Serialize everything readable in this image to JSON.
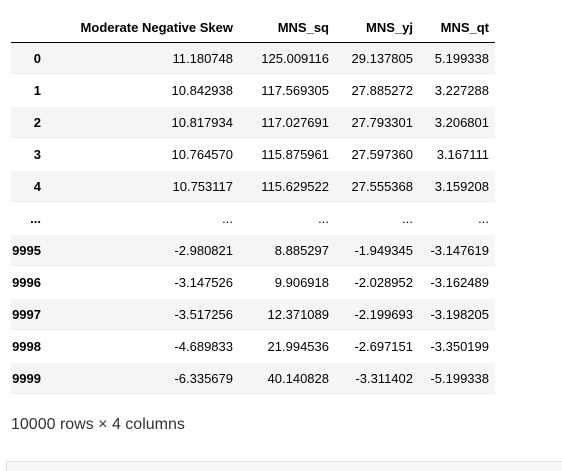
{
  "table": {
    "columns": [
      "Moderate Negative Skew",
      "MNS_sq",
      "MNS_yj",
      "MNS_qt"
    ],
    "rows": [
      {
        "index": "0",
        "cells": [
          "11.180748",
          "125.009116",
          "29.137805",
          "5.199338"
        ]
      },
      {
        "index": "1",
        "cells": [
          "10.842938",
          "117.569305",
          "27.885272",
          "3.227288"
        ]
      },
      {
        "index": "2",
        "cells": [
          "10.817934",
          "117.027691",
          "27.793301",
          "3.206801"
        ]
      },
      {
        "index": "3",
        "cells": [
          "10.764570",
          "115.875961",
          "27.597360",
          "3.167111"
        ]
      },
      {
        "index": "4",
        "cells": [
          "10.753117",
          "115.629522",
          "27.555368",
          "3.159208"
        ]
      },
      {
        "index": "...",
        "cells": [
          "...",
          "...",
          "...",
          "..."
        ]
      },
      {
        "index": "9995",
        "cells": [
          "-2.980821",
          "8.885297",
          "-1.949345",
          "-3.147619"
        ]
      },
      {
        "index": "9996",
        "cells": [
          "-3.147526",
          "9.906918",
          "-2.028952",
          "-3.162489"
        ]
      },
      {
        "index": "9997",
        "cells": [
          "-3.517256",
          "12.371089",
          "-2.199693",
          "-3.198205"
        ]
      },
      {
        "index": "9998",
        "cells": [
          "-4.689833",
          "21.994536",
          "-2.697151",
          "-3.350199"
        ]
      },
      {
        "index": "9999",
        "cells": [
          "-6.335679",
          "40.140828",
          "-3.311402",
          "-5.199338"
        ]
      }
    ]
  },
  "shape_text": "10000 rows × 4 columns"
}
